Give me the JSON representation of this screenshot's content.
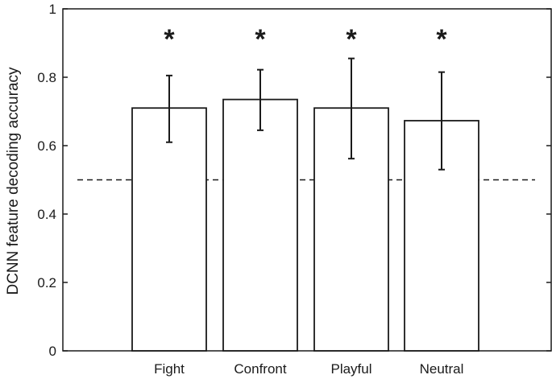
{
  "chart_data": {
    "type": "bar",
    "categories": [
      "Fight",
      "Confront",
      "Playful",
      "Neutral"
    ],
    "values": [
      0.71,
      0.735,
      0.71,
      0.673
    ],
    "error": {
      "lower": [
        0.61,
        0.645,
        0.562,
        0.53
      ],
      "upper": [
        0.805,
        0.822,
        0.855,
        0.815
      ]
    },
    "significance": [
      "*",
      "*",
      "*",
      "*"
    ],
    "reference_line": {
      "y": 0.5,
      "style": "dashed"
    },
    "ylabel": "DCNN feature decoding accuracy",
    "xlabel": "",
    "ylim": [
      0,
      1
    ],
    "yticks": [
      0,
      0.2,
      0.4,
      0.6,
      0.8,
      1
    ],
    "ytick_labels": [
      "0",
      "0.2",
      "0.4",
      "0.6",
      "0.8",
      "1"
    ],
    "grid": false,
    "legend": "none",
    "colors": {
      "bar_fill": "#ffffff",
      "stroke": "#1a1a1a"
    }
  }
}
